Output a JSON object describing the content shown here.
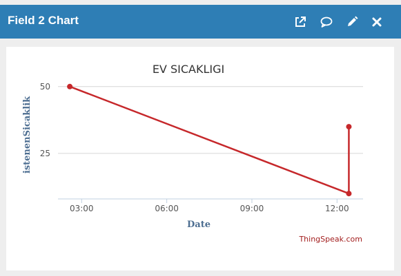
{
  "header": {
    "title": "Field 2 Chart",
    "background": "#2e7eb5",
    "icons": [
      "external-link-icon",
      "comment-icon",
      "pencil-icon",
      "close-icon"
    ]
  },
  "chart_data": {
    "type": "line",
    "title": "EV SICAKLIGI",
    "xlabel": "Date",
    "ylabel": "istenenSicaklik",
    "x_ticks": [
      "03:00",
      "06:00",
      "09:00",
      "12:00"
    ],
    "y_ticks": [
      25,
      50
    ],
    "xlim": [
      "02:10",
      "12:55"
    ],
    "ylim": [
      8,
      52
    ],
    "grid": true,
    "series": [
      {
        "color": "#c6282b",
        "points": [
          {
            "x": "02:35",
            "y": 50
          },
          {
            "x": "12:25",
            "y": 10
          },
          {
            "x": "12:25",
            "y": 35
          }
        ]
      }
    ],
    "credits": "ThingSpeak.com"
  }
}
